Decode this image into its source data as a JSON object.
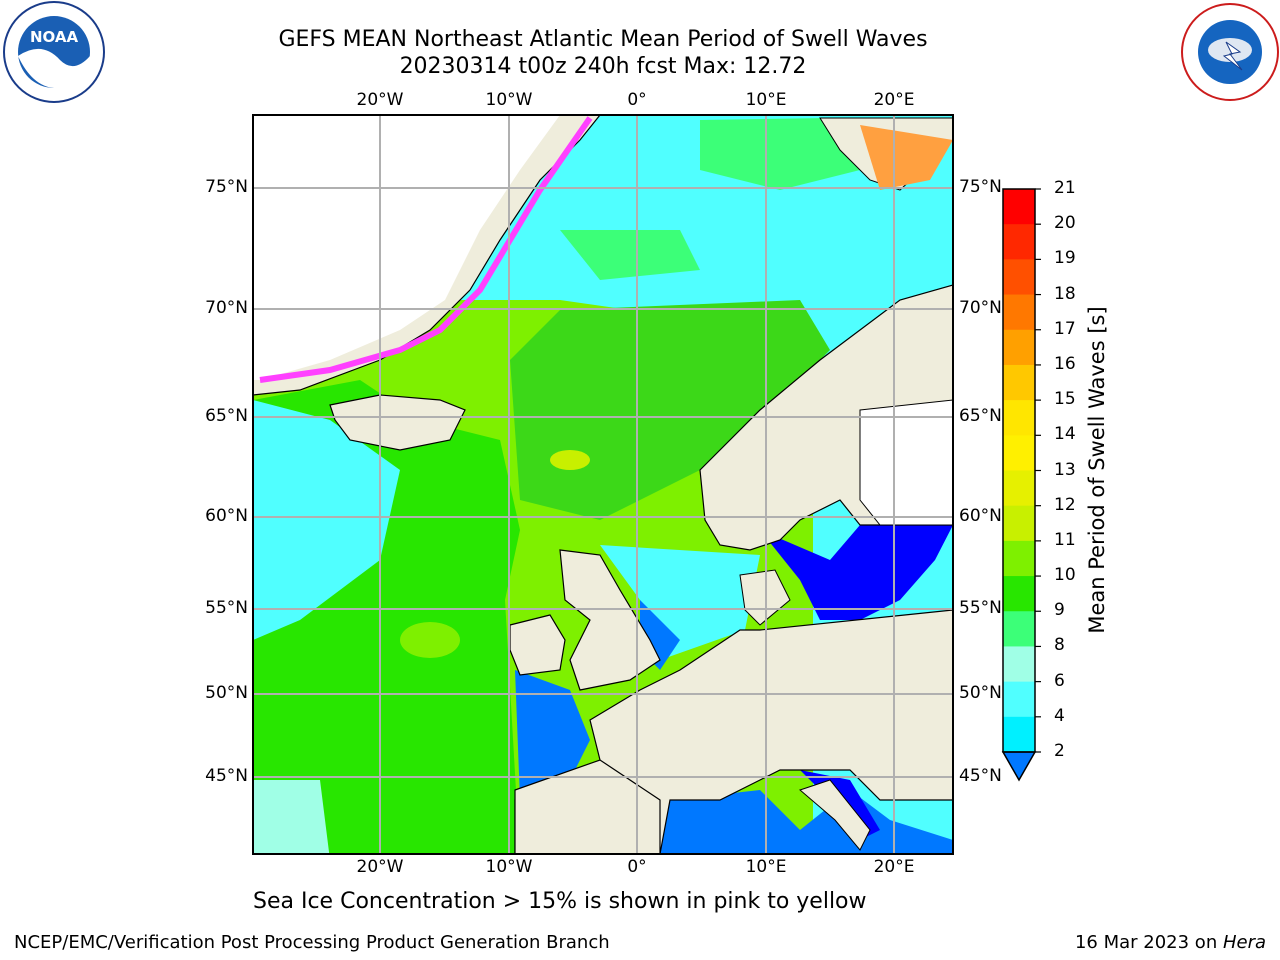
{
  "title": {
    "line1": "GEFS MEAN Northeast Atlantic Mean Period of Swell Waves",
    "line2": "20230314 t00z 240h fcst   Max: 12.72"
  },
  "map": {
    "lon_labels": [
      "20°W",
      "10°W",
      "0°",
      "10°E",
      "20°E"
    ],
    "lat_labels": [
      "75°N",
      "70°N",
      "65°N",
      "60°N",
      "55°N",
      "50°N",
      "45°N"
    ],
    "land_color": "#efeddc",
    "ice_colors": [
      "#ff40ff",
      "#ffa040",
      "#ffff60"
    ]
  },
  "colorbar": {
    "label": "Mean Period of Swell Waves [s]",
    "ticks": [
      "21",
      "20",
      "19",
      "18",
      "17",
      "16",
      "15",
      "14",
      "13",
      "12",
      "11",
      "10",
      "9",
      "8",
      "6",
      "4",
      "2"
    ],
    "colors": [
      "#ff0000",
      "#ff2800",
      "#ff5000",
      "#ff7800",
      "#ffa000",
      "#ffc800",
      "#ffe600",
      "#fff000",
      "#e6f000",
      "#c8f000",
      "#7ef000",
      "#28e600",
      "#3cff78",
      "#a0ffe6",
      "#50ffff",
      "#00f0ff",
      "#0078ff",
      "#0000ff"
    ]
  },
  "note": "Sea Ice Concentration > 15% is shown in pink to yellow",
  "footer": {
    "left": "NCEP/EMC/Verification Post Processing Product Generation Branch",
    "right_prefix": "16 Mar 2023 on ",
    "right_host": "Hera"
  }
}
